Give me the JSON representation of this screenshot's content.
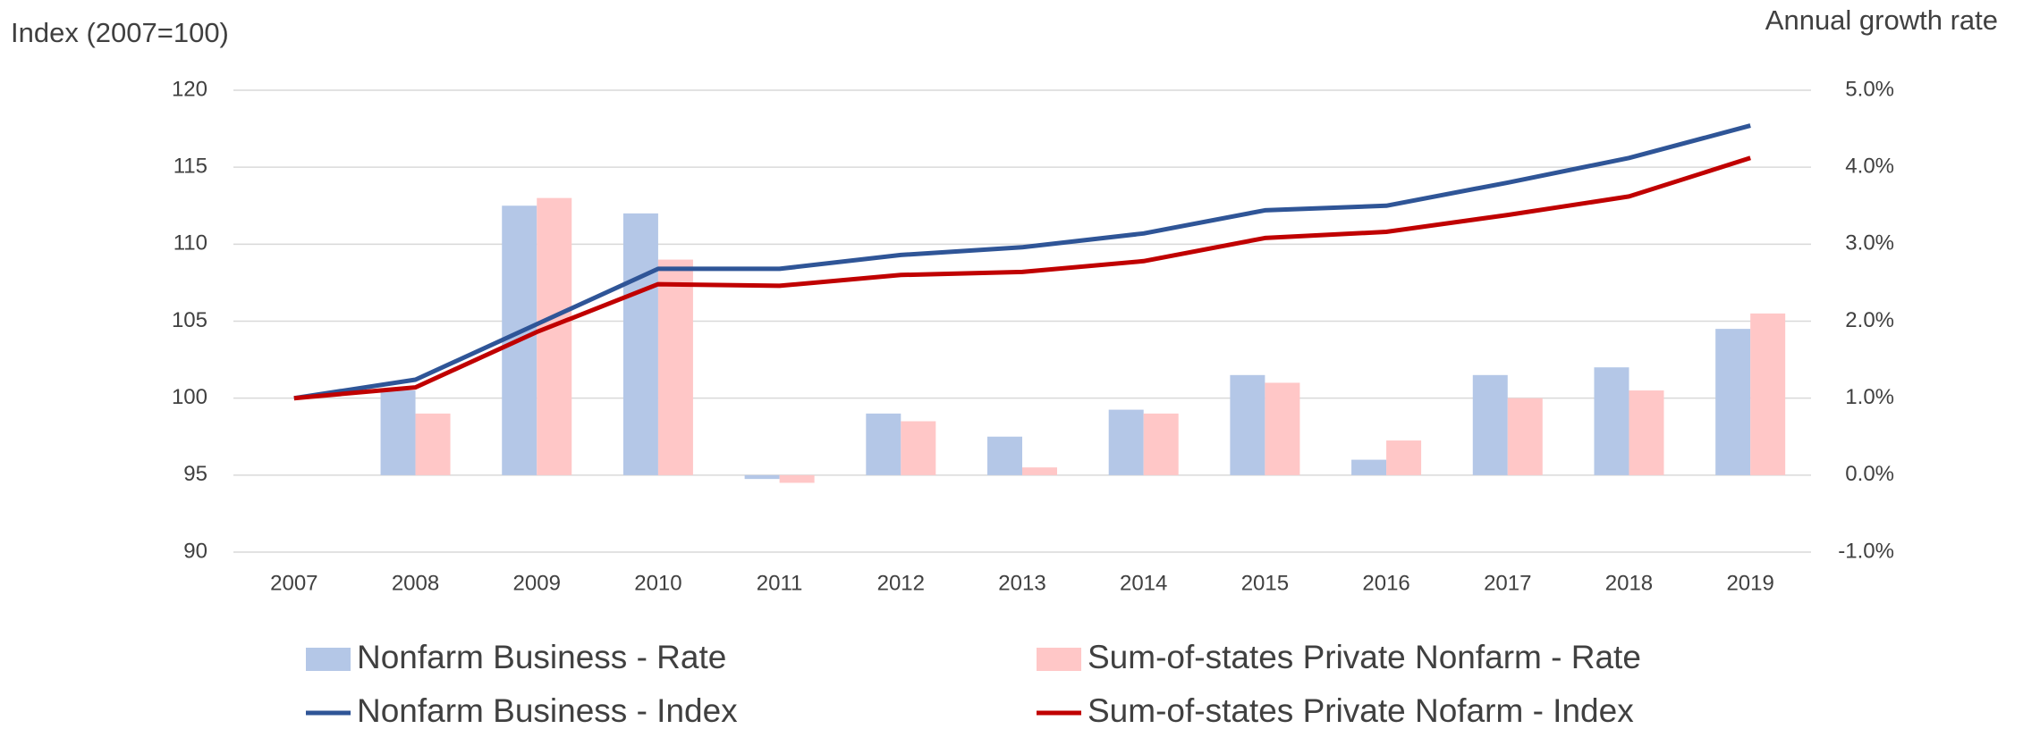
{
  "chart_data": {
    "type": "bar",
    "y_label": "Index (2007=100)",
    "y2_label": "Annual growth rate",
    "categories": [
      "2007",
      "2008",
      "2009",
      "2010",
      "2011",
      "2012",
      "2013",
      "2014",
      "2015",
      "2016",
      "2017",
      "2018",
      "2019"
    ],
    "ylim": [
      90,
      120
    ],
    "yticks": [
      90,
      95,
      100,
      105,
      110,
      115,
      120
    ],
    "y2lim": [
      -1,
      5
    ],
    "y2ticks": [
      {
        "value": -1,
        "label": "-1.0%"
      },
      {
        "value": 0,
        "label": "0.0%"
      },
      {
        "value": 1,
        "label": "1.0%"
      },
      {
        "value": 2,
        "label": "2.0%"
      },
      {
        "value": 3,
        "label": "3.0%"
      },
      {
        "value": 4,
        "label": "4.0%"
      },
      {
        "value": 5,
        "label": "5.0%"
      }
    ],
    "grid": true,
    "series": [
      {
        "name": "Nonfarm Business - Rate",
        "type": "bar",
        "axis": "y2",
        "color": "#b4c7e7",
        "values": [
          null,
          1.1,
          3.5,
          3.4,
          -0.05,
          0.8,
          0.5,
          0.85,
          1.3,
          0.2,
          1.3,
          1.4,
          1.9
        ]
      },
      {
        "name": "Sum-of-states Private Nonfarm - Rate",
        "type": "bar",
        "axis": "y2",
        "color": "#ffc7c7",
        "values": [
          null,
          0.8,
          3.6,
          2.8,
          -0.1,
          0.7,
          0.1,
          0.8,
          1.2,
          0.45,
          1.0,
          1.1,
          2.1
        ]
      },
      {
        "name": "Nonfarm Business - Index",
        "type": "line",
        "color": "#2f5597",
        "values": [
          100,
          101.2,
          104.8,
          108.4,
          108.4,
          109.3,
          109.8,
          110.7,
          112.2,
          112.5,
          114.0,
          115.6,
          117.7
        ]
      },
      {
        "name": "Sum-of-states Private Nofarm - Index",
        "type": "line",
        "color": "#c00000",
        "values": [
          100,
          100.7,
          104.3,
          107.4,
          107.3,
          108.0,
          108.2,
          108.9,
          110.4,
          110.8,
          111.9,
          113.1,
          115.6
        ]
      }
    ]
  }
}
